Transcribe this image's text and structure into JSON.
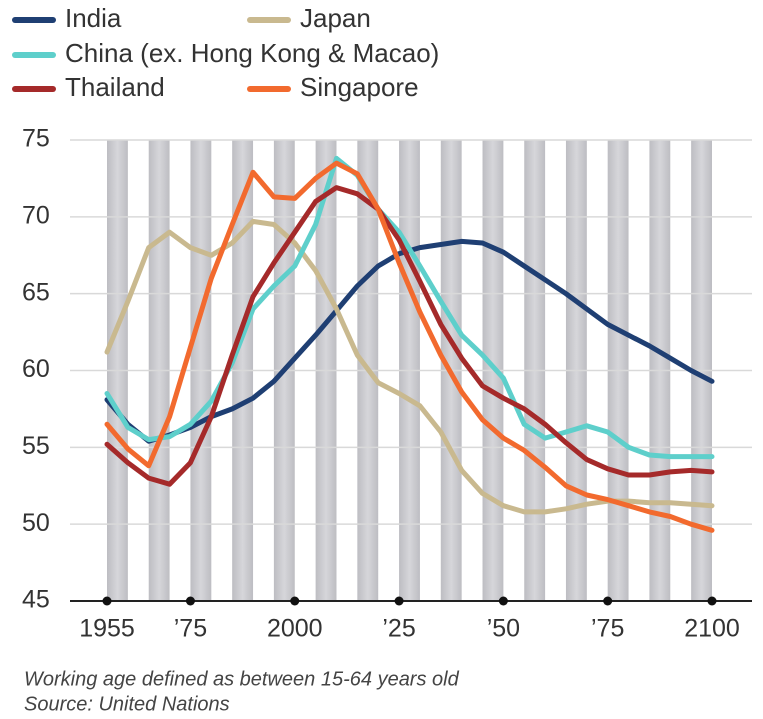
{
  "chart_data": {
    "type": "line",
    "x": [
      1955,
      1960,
      1965,
      1970,
      1975,
      1980,
      1985,
      1990,
      1995,
      2000,
      2005,
      2010,
      2015,
      2020,
      2025,
      2030,
      2035,
      2040,
      2045,
      2050,
      2055,
      2060,
      2065,
      2070,
      2075,
      2080,
      2085,
      2090,
      2095,
      2100
    ],
    "series": [
      {
        "name": "India",
        "color": "#1f3f73",
        "values": [
          58.1,
          56.5,
          55.4,
          55.8,
          56.3,
          57.0,
          57.5,
          58.2,
          59.3,
          60.8,
          62.3,
          63.9,
          65.5,
          66.8,
          67.6,
          68.0,
          68.2,
          68.4,
          68.3,
          67.7,
          66.8,
          65.9,
          65.0,
          64.0,
          63.0,
          62.3,
          61.6,
          60.8,
          60.0,
          59.3
        ]
      },
      {
        "name": "Japan",
        "color": "#c9b98f",
        "values": [
          61.2,
          64.5,
          68.0,
          69.0,
          68.0,
          67.5,
          68.3,
          69.7,
          69.5,
          68.3,
          66.5,
          64.0,
          61.0,
          59.2,
          58.5,
          57.7,
          56.0,
          53.5,
          52.0,
          51.2,
          50.8,
          50.8,
          51.0,
          51.3,
          51.5,
          51.5,
          51.4,
          51.4,
          51.3,
          51.2
        ]
      },
      {
        "name": "China (ex. Hong Kong & Macao)",
        "color": "#5ecfcb",
        "values": [
          58.5,
          56.3,
          55.5,
          55.7,
          56.5,
          58.0,
          60.5,
          64.0,
          65.5,
          66.8,
          69.5,
          73.8,
          72.7,
          70.5,
          69.0,
          66.8,
          64.5,
          62.3,
          61.0,
          59.5,
          56.5,
          55.6,
          56.0,
          56.4,
          56.0,
          55.0,
          54.5,
          54.4,
          54.4,
          54.4
        ]
      },
      {
        "name": "Thailand",
        "color": "#a52a2a",
        "values": [
          55.2,
          54.0,
          53.0,
          52.6,
          54.0,
          57.0,
          61.0,
          64.8,
          67.0,
          69.0,
          71.0,
          71.9,
          71.5,
          70.5,
          68.5,
          65.8,
          63.0,
          60.8,
          59.0,
          58.2,
          57.5,
          56.5,
          55.3,
          54.2,
          53.6,
          53.2,
          53.2,
          53.4,
          53.5,
          53.4
        ]
      },
      {
        "name": "Singapore",
        "color": "#f26a2e",
        "values": [
          56.5,
          54.9,
          53.8,
          57.0,
          61.5,
          66.0,
          69.5,
          72.9,
          71.3,
          71.2,
          72.5,
          73.5,
          72.8,
          70.5,
          67.0,
          63.8,
          61.0,
          58.6,
          56.8,
          55.6,
          54.8,
          53.7,
          52.5,
          51.9,
          51.6,
          51.2,
          50.8,
          50.5,
          50.0,
          49.6
        ]
      }
    ],
    "xlim": [
      1955,
      2100
    ],
    "xticks": [
      1955,
      {
        "value": 1975,
        "label": "’75"
      },
      2000,
      {
        "value": 2025,
        "label": "’25"
      },
      {
        "value": 2050,
        "label": "’50"
      },
      {
        "value": 2075,
        "label": "’75"
      },
      2100
    ],
    "ylim": [
      45,
      75
    ],
    "yticks": [
      45,
      50,
      55,
      60,
      65,
      70,
      75
    ],
    "grid": true,
    "notes": [
      "Working age defined as between 15-64 years old",
      "Source: United Nations"
    ]
  }
}
